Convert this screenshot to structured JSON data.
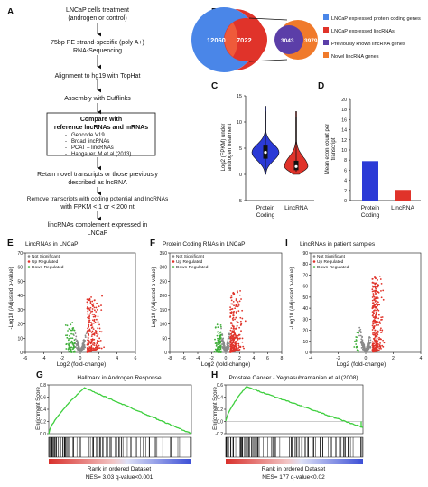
{
  "panels": {
    "A": {
      "letter": "A",
      "steps": [
        "LNCaP cells treatment",
        "(androgen or control)",
        "75bp PE strand-specific (poly A+)",
        "RNA-Sequencing",
        "Alignment to hg19 with TopHat",
        "Assembly with Cufflinks"
      ],
      "compare_title": [
        "Compare with",
        "reference lncRNAs and mRNAs"
      ],
      "compare_items": [
        "Gencode  V19",
        "Broad lincRNAs",
        "PCAT – lincRNAs",
        "Hangauer, M et al (2013)"
      ],
      "steps_after": [
        "Retain novel transcripts or those previously",
        "described as lncRNA",
        "Remove transcripts with coding potential and lncRNAs",
        "with FPKM < 1 or < 200 nt",
        "lincRNAs complement expressed in",
        "LNCaP"
      ]
    },
    "B": {
      "letter": "B",
      "venn_left": [
        "12060",
        "7022"
      ],
      "venn_right": [
        "3043",
        "3979"
      ],
      "legend": [
        {
          "label": "LNCaP expressed protein coding genes",
          "color": "#4a86e8"
        },
        {
          "label": "LNCaP expressed lincRNAs",
          "color": "#e0332a"
        },
        {
          "label": "Previously known lincRNA genes",
          "color": "#5b3ea8"
        },
        {
          "label": "Novel lincRNA genes",
          "color": "#f07a2b"
        }
      ]
    },
    "C": {
      "letter": "C",
      "ylabel": [
        "Log2 (FPKM) under",
        "androgen treatment"
      ],
      "categories": [
        "Protein",
        "Coding",
        "LincRNA"
      ],
      "yticks": [
        "-5",
        "0",
        "5",
        "10",
        "15"
      ]
    },
    "D": {
      "letter": "D",
      "ylabel": [
        "Mean exon count per",
        "transcript"
      ],
      "categories": [
        "Protein",
        "Coding",
        "LincRNA"
      ],
      "yticks": [
        "0",
        "2",
        "4",
        "6",
        "8",
        "10",
        "12",
        "14",
        "16",
        "18",
        "20"
      ]
    },
    "E": {
      "letter": "E",
      "title": "LincRNAs in LNCaP",
      "xlabel": "Log2 (fold-change)",
      "ylabel": "-Log10 (Adjusted p-value)",
      "xticks": [
        "-6",
        "-4",
        "-2",
        "0",
        "2",
        "4",
        "6"
      ],
      "yticks": [
        "0",
        "10",
        "20",
        "30",
        "40",
        "50",
        "60",
        "70"
      ],
      "legend": [
        "Not Significant",
        "Up Regulated",
        "Down Regulated"
      ]
    },
    "F": {
      "letter": "F",
      "title": "Protein Coding RNAs in LNCaP",
      "xlabel": "Log2 (fold-change)",
      "ylabel": "-Log10 (Adjusted p-value)",
      "xticks": [
        "-8",
        "-6",
        "-4",
        "-2",
        "0",
        "2",
        "4",
        "6",
        "8"
      ],
      "yticks": [
        "0",
        "50",
        "100",
        "150",
        "200",
        "250",
        "300",
        "350"
      ],
      "legend": [
        "Not Significant",
        "Up Regulated",
        "Down Regulated"
      ]
    },
    "I": {
      "letter": "I",
      "title": "LincRNAs in patient samples",
      "xlabel": "Log2 (fold-change)",
      "ylabel": "-Log10 (Adjusted p-value)",
      "xticks": [
        "-4",
        "-2",
        "0",
        "2",
        "4"
      ],
      "yticks": [
        "0",
        "10",
        "20",
        "30",
        "40",
        "50",
        "60",
        "70",
        "80",
        "90"
      ],
      "legend": [
        "Not Significant",
        "Up Regulated",
        "Down Regulated"
      ]
    },
    "G": {
      "letter": "G",
      "title": "Hallmark in Androgen Response",
      "ylabel": "Enrichment Score",
      "yticks": [
        "0.0",
        "0.2",
        "0.4",
        "0.6",
        "0.8"
      ],
      "xlabel": "Rank in ordered Dataset",
      "stat": "NES= 3.03 q-value<0.001"
    },
    "H": {
      "letter": "H",
      "title": "Prostate Cancer - Yegnasubramanian et al (2008)",
      "ylabel": "Enrichment Score",
      "yticks": [
        "-0.2",
        "0.0",
        "0.2",
        "0.4",
        "0.6"
      ],
      "xlabel": "Rank in ordered Dataset",
      "stat": "NES= 177 q-value<0.02"
    }
  },
  "chart_data": [
    {
      "panel": "C",
      "type": "violin",
      "categories": [
        "Protein Coding",
        "LincRNA"
      ],
      "ylabel": "Log2 (FPKM) under androgen treatment",
      "ylim": [
        -5,
        15
      ],
      "series": [
        {
          "name": "Protein Coding",
          "color": "#2b3ad6",
          "min": 0,
          "max": 13,
          "median": 4.2,
          "q1": 3,
          "q3": 5.5
        },
        {
          "name": "LincRNA",
          "color": "#e0332a",
          "min": 0,
          "max": 12,
          "median": 1.5,
          "q1": 0.8,
          "q3": 2.6
        }
      ]
    },
    {
      "panel": "D",
      "type": "bar",
      "categories": [
        "Protein Coding",
        "LincRNA"
      ],
      "values": [
        7.8,
        2.1
      ],
      "colors": [
        "#2b3ad6",
        "#e0332a"
      ],
      "ylabel": "Mean exon count per transcript",
      "ylim": [
        0,
        20
      ]
    },
    {
      "panel": "E",
      "type": "scatter",
      "xlim": [
        -6,
        6
      ],
      "ylim": [
        0,
        70
      ],
      "xlabel": "Log2 (fold-change)",
      "ylabel": "-Log10 (Adjusted p-value)"
    },
    {
      "panel": "F",
      "type": "scatter",
      "xlim": [
        -8,
        8
      ],
      "ylim": [
        0,
        350
      ],
      "xlabel": "Log2 (fold-change)",
      "ylabel": "-Log10 (Adjusted p-value)"
    },
    {
      "panel": "I",
      "type": "scatter",
      "xlim": [
        -4,
        4
      ],
      "ylim": [
        0,
        90
      ],
      "xlabel": "Log2 (fold-change)",
      "ylabel": "-Log10 (Adjusted p-value)"
    },
    {
      "panel": "G",
      "type": "line",
      "ylabel": "Enrichment Score",
      "ylim": [
        0,
        0.8
      ],
      "peak": 0.75
    },
    {
      "panel": "H",
      "type": "line",
      "ylabel": "Enrichment Score",
      "ylim": [
        -0.2,
        0.6
      ],
      "peak": 0.57
    }
  ],
  "colors": {
    "not_significant": "#8a8a8a",
    "up": "#e0332a",
    "down": "#3fae3a",
    "es_curve": "#3fcf3f",
    "rank_red": "#d9302b",
    "rank_blue": "#3c4fd6"
  }
}
